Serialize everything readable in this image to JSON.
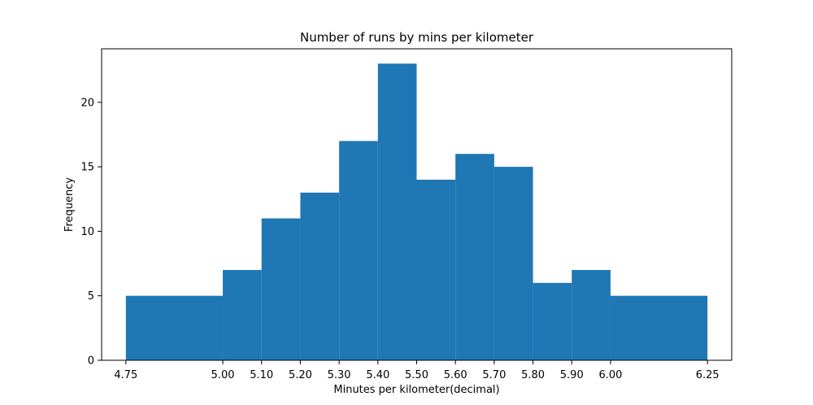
{
  "chart_data": {
    "type": "bar",
    "title": "Number of runs by mins per kilometer",
    "xlabel": "Minutes per kilometer(decimal)",
    "ylabel": "Frequency",
    "bins": [
      {
        "start": 4.75,
        "end": 5.0,
        "value": 5
      },
      {
        "start": 5.0,
        "end": 5.1,
        "value": 7
      },
      {
        "start": 5.1,
        "end": 5.2,
        "value": 11
      },
      {
        "start": 5.2,
        "end": 5.3,
        "value": 13
      },
      {
        "start": 5.3,
        "end": 5.4,
        "value": 17
      },
      {
        "start": 5.4,
        "end": 5.5,
        "value": 23
      },
      {
        "start": 5.5,
        "end": 5.6,
        "value": 14
      },
      {
        "start": 5.6,
        "end": 5.7,
        "value": 16
      },
      {
        "start": 5.7,
        "end": 5.8,
        "value": 15
      },
      {
        "start": 5.8,
        "end": 5.9,
        "value": 6
      },
      {
        "start": 5.9,
        "end": 6.0,
        "value": 7
      },
      {
        "start": 6.0,
        "end": 6.25,
        "value": 5
      }
    ],
    "xticks": [
      "4.75",
      "5.00",
      "5.10",
      "5.20",
      "5.30",
      "5.40",
      "5.50",
      "5.60",
      "5.70",
      "5.80",
      "5.90",
      "6.00",
      "6.25"
    ],
    "yticks": [
      0,
      5,
      10,
      15,
      20
    ],
    "xlim": [
      4.6875,
      6.3125
    ],
    "ylim": [
      0,
      24.15
    ],
    "bar_color": "#1f77b4",
    "grid": false,
    "legend": "none"
  }
}
